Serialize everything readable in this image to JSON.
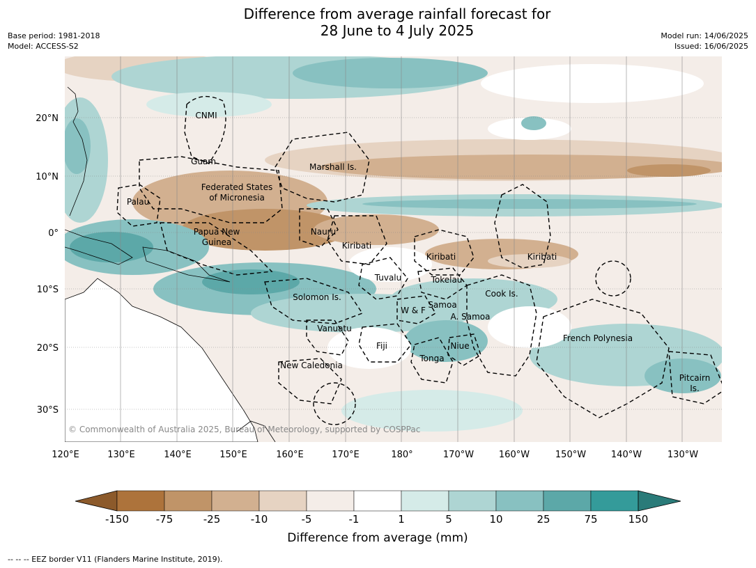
{
  "title_line1": "Difference from average rainfall forecast for",
  "title_line2": "28 June to 4 July 2025",
  "meta": {
    "base_period": "Base period: 1981-2018",
    "model": "Model: ACCESS-S2",
    "model_run": "Model run: 14/06/2025",
    "issued": "Issued: 16/06/2025"
  },
  "lat_ticks": [
    "20°N",
    "10°N",
    "0°",
    "10°S",
    "20°S",
    "30°S"
  ],
  "lon_ticks": [
    "120°E",
    "130°E",
    "140°E",
    "150°E",
    "160°E",
    "170°E",
    "180°",
    "170°W",
    "160°W",
    "150°W",
    "140°W",
    "130°W"
  ],
  "regions": [
    {
      "name": "cnmi",
      "text": "CNMI"
    },
    {
      "name": "guam",
      "text": "Guam"
    },
    {
      "name": "marshall",
      "text": "Marshall Is."
    },
    {
      "name": "fsm1",
      "text": "Federated States"
    },
    {
      "name": "fsm2",
      "text": "of Micronesia"
    },
    {
      "name": "palau",
      "text": "Palau"
    },
    {
      "name": "png1",
      "text": "Papua New"
    },
    {
      "name": "png2",
      "text": "Guinea"
    },
    {
      "name": "nauru",
      "text": "Nauru"
    },
    {
      "name": "kiribati-w",
      "text": "Kiribati"
    },
    {
      "name": "kiribati-c",
      "text": "Kiribati"
    },
    {
      "name": "kiribati-e",
      "text": "Kiribati"
    },
    {
      "name": "tuvalu",
      "text": "Tuvalu"
    },
    {
      "name": "tokelau",
      "text": "Tokelau"
    },
    {
      "name": "cook",
      "text": "Cook Is."
    },
    {
      "name": "solomon",
      "text": "Solomon Is."
    },
    {
      "name": "samoa",
      "text": "Samoa"
    },
    {
      "name": "wf",
      "text": "W & F"
    },
    {
      "name": "asamoa",
      "text": "A. Samoa"
    },
    {
      "name": "vanuatu",
      "text": "Vanuatu"
    },
    {
      "name": "fiji",
      "text": "Fiji"
    },
    {
      "name": "niue",
      "text": "Niue"
    },
    {
      "name": "french-polynesia",
      "text": "French Polynesia"
    },
    {
      "name": "tonga",
      "text": "Tonga"
    },
    {
      "name": "new-caledonia",
      "text": "New Caledonia"
    },
    {
      "name": "pitcairn1",
      "text": "Pitcairn"
    },
    {
      "name": "pitcairn2",
      "text": "Is."
    }
  ],
  "copyright": "© Commonwealth of Australia 2025, Bureau of Meteorology, supported by COSPPac",
  "colorbar": {
    "label": "Difference from average (mm)",
    "ticks": [
      "-150",
      "-75",
      "-25",
      "-10",
      "-5",
      "-1",
      "1",
      "5",
      "10",
      "25",
      "75",
      "150"
    ],
    "colors": [
      "#8c5a2b",
      "#ad733b",
      "#c09468",
      "#d2b090",
      "#e6d3c2",
      "#f4ede8",
      "#ffffff",
      "#d5ebe8",
      "#aed5d3",
      "#88c1c1",
      "#5ca8a8",
      "#349b9a",
      "#2a7b79"
    ]
  },
  "footer": "--  --  -- EEZ border V11 (Flanders Marine Institute, 2019)."
}
